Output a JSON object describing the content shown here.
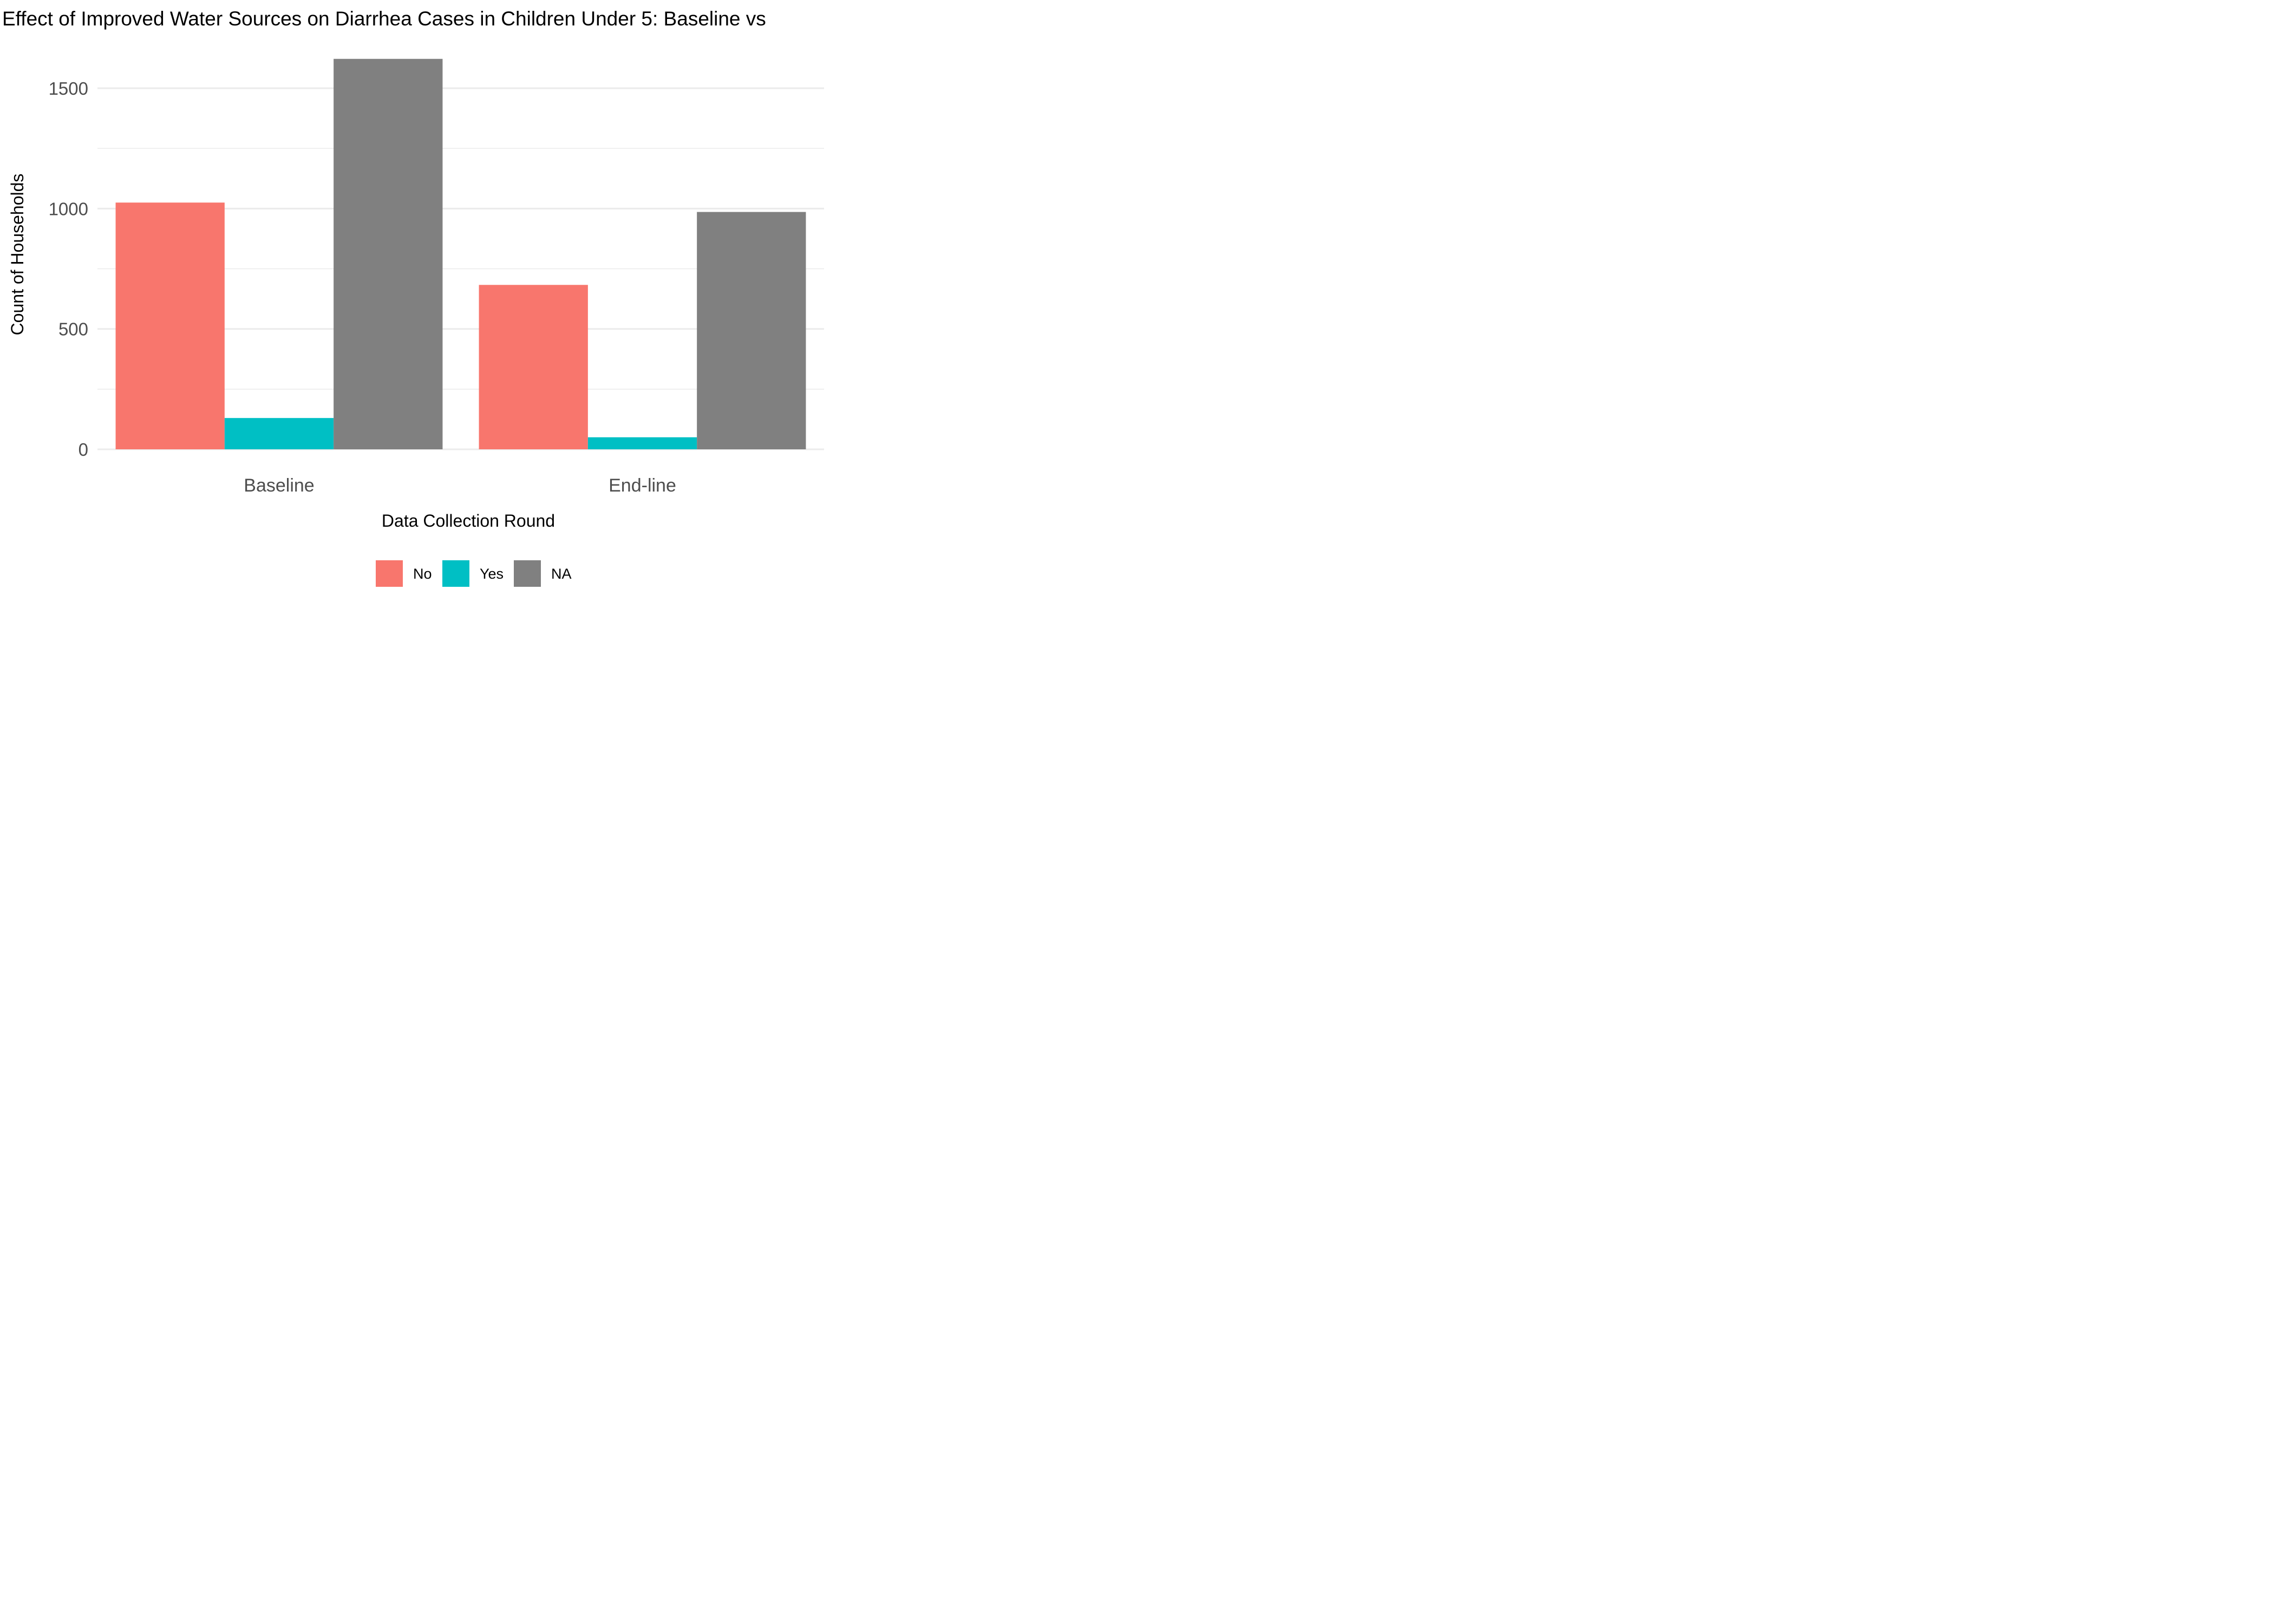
{
  "chart_data": {
    "type": "bar",
    "title": "Effect of Improved Water Sources on Diarrhea Cases in Children Under 5: Baseline vs",
    "xlabel": "Data Collection Round",
    "ylabel": "Count of Households",
    "categories": [
      "Baseline",
      "End-line"
    ],
    "series": [
      {
        "name": "No",
        "values": [
          1025,
          683
        ],
        "color": "#F8766D"
      },
      {
        "name": "Yes",
        "values": [
          130,
          50
        ],
        "color": "#00BFC4"
      },
      {
        "name": "NA",
        "values": [
          1622,
          986
        ],
        "color": "#808080"
      }
    ],
    "ylim": [
      0,
      1650
    ],
    "yticks": [
      0,
      500,
      1000,
      1500
    ],
    "grid": true,
    "legend_position": "bottom"
  }
}
